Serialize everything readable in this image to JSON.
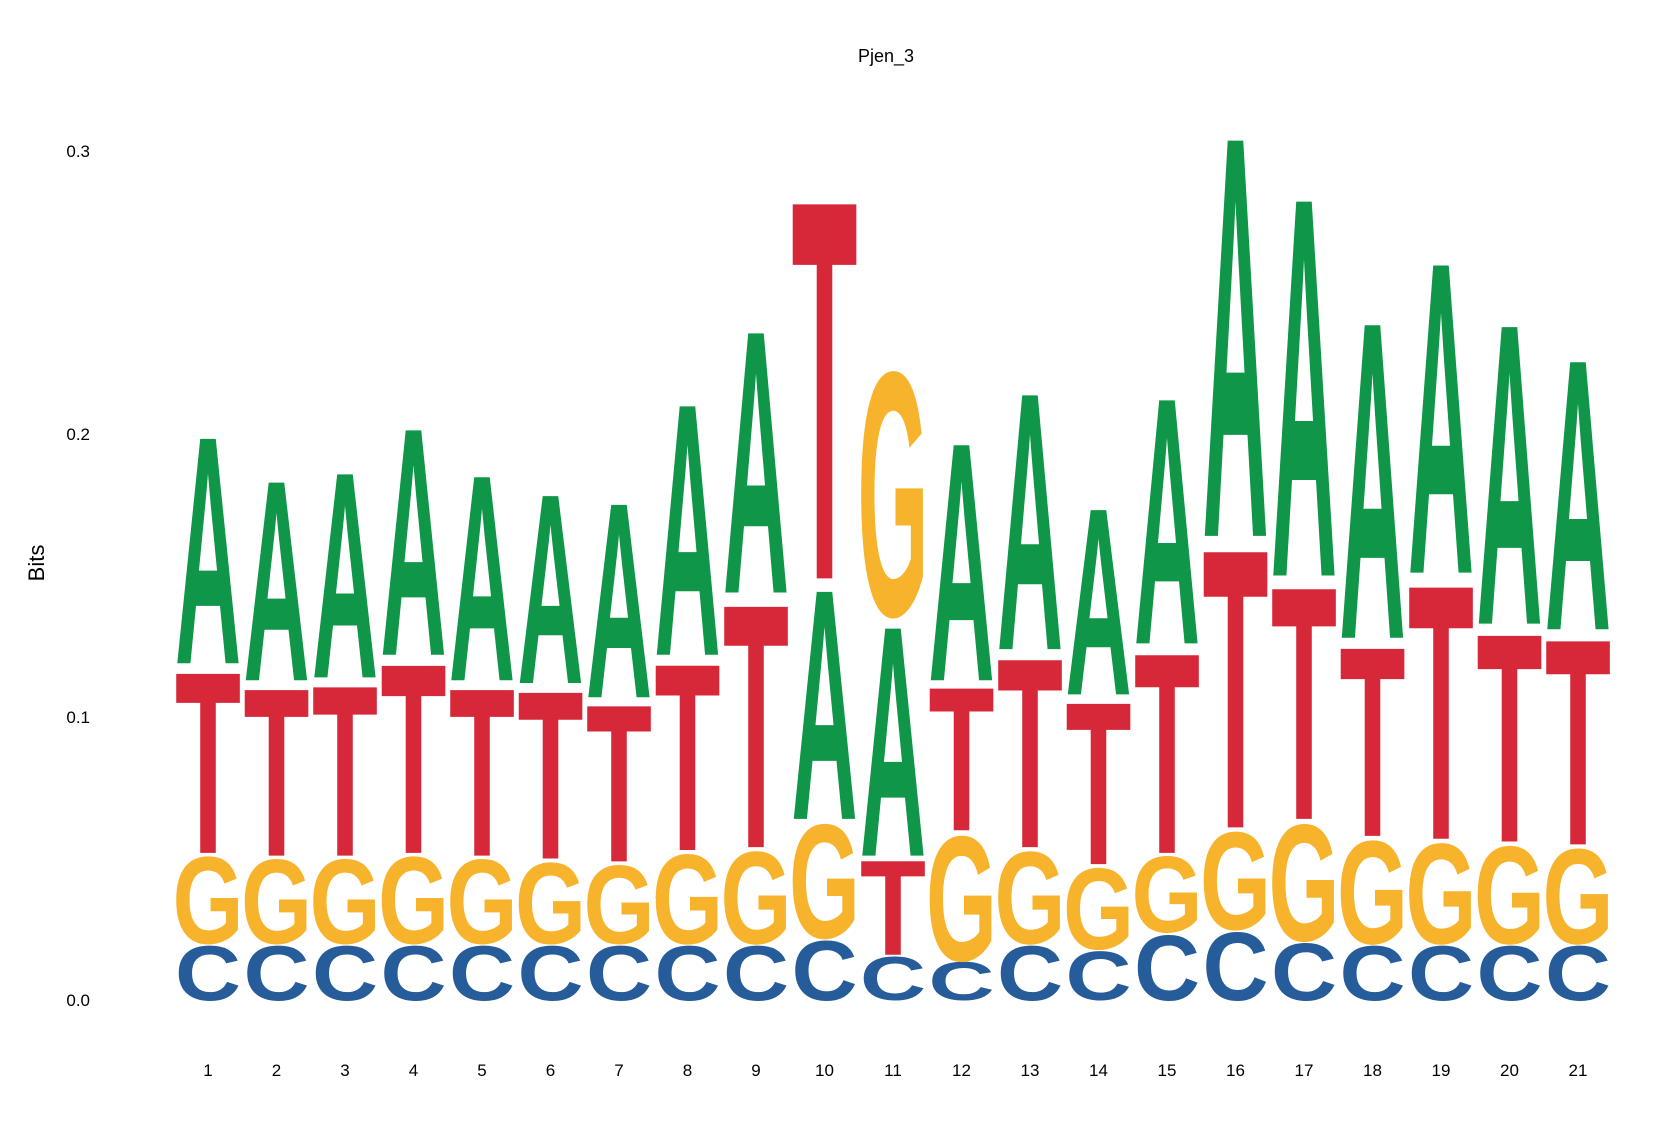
{
  "chart_data": {
    "type": "sequence-logo",
    "title": "Pjen_3",
    "ylabel": "Bits",
    "xlabel": "",
    "ylim": [
      0,
      0.32
    ],
    "yticks": [
      "0.0",
      "0.1",
      "0.2",
      "0.3"
    ],
    "ytick_values": [
      0.0,
      0.1,
      0.2,
      0.3
    ],
    "grid": false,
    "colors": {
      "A": "#109648",
      "C": "#255C99",
      "G": "#F7B32B",
      "T": "#D62839"
    },
    "positions": [
      {
        "label": "1",
        "stack": [
          [
            "C",
            0.02
          ],
          [
            "G",
            0.032
          ],
          [
            "T",
            0.067
          ],
          [
            "A",
            0.084
          ]
        ]
      },
      {
        "label": "2",
        "stack": [
          [
            "C",
            0.02
          ],
          [
            "G",
            0.031
          ],
          [
            "T",
            0.062
          ],
          [
            "A",
            0.074
          ]
        ]
      },
      {
        "label": "3",
        "stack": [
          [
            "C",
            0.02
          ],
          [
            "G",
            0.031
          ],
          [
            "T",
            0.063
          ],
          [
            "A",
            0.076
          ]
        ]
      },
      {
        "label": "4",
        "stack": [
          [
            "C",
            0.02
          ],
          [
            "G",
            0.032
          ],
          [
            "T",
            0.07
          ],
          [
            "A",
            0.084
          ]
        ]
      },
      {
        "label": "5",
        "stack": [
          [
            "C",
            0.02
          ],
          [
            "G",
            0.031
          ],
          [
            "T",
            0.062
          ],
          [
            "A",
            0.076
          ]
        ]
      },
      {
        "label": "6",
        "stack": [
          [
            "C",
            0.02
          ],
          [
            "G",
            0.03
          ],
          [
            "T",
            0.062
          ],
          [
            "A",
            0.07
          ]
        ]
      },
      {
        "label": "7",
        "stack": [
          [
            "C",
            0.02
          ],
          [
            "G",
            0.029
          ],
          [
            "T",
            0.058
          ],
          [
            "A",
            0.072
          ]
        ]
      },
      {
        "label": "8",
        "stack": [
          [
            "C",
            0.02
          ],
          [
            "G",
            0.033
          ],
          [
            "T",
            0.069
          ],
          [
            "A",
            0.093
          ]
        ]
      },
      {
        "label": "9",
        "stack": [
          [
            "C",
            0.02
          ],
          [
            "G",
            0.034
          ],
          [
            "T",
            0.09
          ],
          [
            "A",
            0.097
          ]
        ]
      },
      {
        "label": "10",
        "stack": [
          [
            "C",
            0.022
          ],
          [
            "G",
            0.042
          ],
          [
            "A",
            0.085
          ],
          [
            "T",
            0.14
          ]
        ]
      },
      {
        "label": "11",
        "stack": [
          [
            "C",
            0.016
          ],
          [
            "T",
            0.035
          ],
          [
            "A",
            0.085
          ],
          [
            "G",
            0.09
          ]
        ]
      },
      {
        "label": "12",
        "stack": [
          [
            "C",
            0.014
          ],
          [
            "G",
            0.046
          ],
          [
            "T",
            0.053
          ],
          [
            "A",
            0.088
          ]
        ]
      },
      {
        "label": "13",
        "stack": [
          [
            "C",
            0.02
          ],
          [
            "G",
            0.034
          ],
          [
            "T",
            0.07
          ],
          [
            "A",
            0.095
          ]
        ]
      },
      {
        "label": "14",
        "stack": [
          [
            "C",
            0.018
          ],
          [
            "G",
            0.03
          ],
          [
            "T",
            0.06
          ],
          [
            "A",
            0.069
          ]
        ]
      },
      {
        "label": "15",
        "stack": [
          [
            "C",
            0.024
          ],
          [
            "G",
            0.028
          ],
          [
            "T",
            0.074
          ],
          [
            "A",
            0.091
          ]
        ]
      },
      {
        "label": "16",
        "stack": [
          [
            "C",
            0.025
          ],
          [
            "G",
            0.036
          ],
          [
            "T",
            0.103
          ],
          [
            "A",
            0.148
          ]
        ]
      },
      {
        "label": "17",
        "stack": [
          [
            "C",
            0.021
          ],
          [
            "G",
            0.043
          ],
          [
            "T",
            0.086
          ],
          [
            "A",
            0.14
          ]
        ]
      },
      {
        "label": "18",
        "stack": [
          [
            "C",
            0.02
          ],
          [
            "G",
            0.038
          ],
          [
            "T",
            0.07
          ],
          [
            "A",
            0.117
          ]
        ]
      },
      {
        "label": "19",
        "stack": [
          [
            "C",
            0.02
          ],
          [
            "G",
            0.037
          ],
          [
            "T",
            0.094
          ],
          [
            "A",
            0.115
          ]
        ]
      },
      {
        "label": "20",
        "stack": [
          [
            "C",
            0.02
          ],
          [
            "G",
            0.036
          ],
          [
            "T",
            0.077
          ],
          [
            "A",
            0.111
          ]
        ]
      },
      {
        "label": "21",
        "stack": [
          [
            "C",
            0.02
          ],
          [
            "G",
            0.035
          ],
          [
            "T",
            0.076
          ],
          [
            "A",
            0.1
          ]
        ]
      }
    ]
  }
}
